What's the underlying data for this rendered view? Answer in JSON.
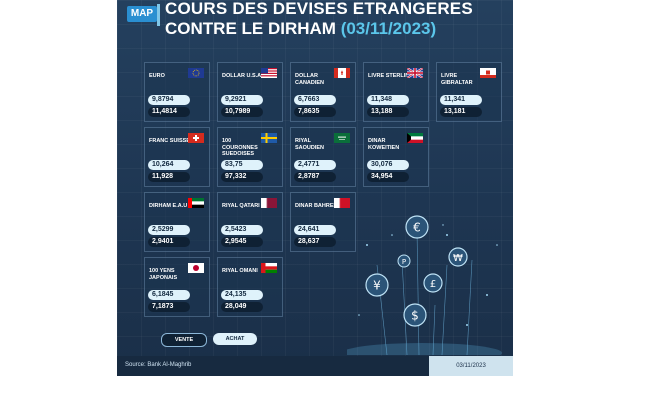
{
  "header": {
    "logo": "MAP",
    "title_line1": "COURS DES DEVISES ETRANGERES",
    "title_line2": "CONTRE LE DIRHAM",
    "title_date": "(03/11/2023)"
  },
  "currencies": [
    {
      "name": "EURO",
      "flag": "eu-flag",
      "vente": "9,8794",
      "achat": "11,4814"
    },
    {
      "name": "DOLLAR U.S.A",
      "flag": "us-flag",
      "vente": "9,2921",
      "achat": "10,7989"
    },
    {
      "name": "DOLLAR CANADIEN",
      "flag": "canada-flag",
      "vente": "6,7663",
      "achat": "7,8635"
    },
    {
      "name": "LIVRE STERLING",
      "flag": "uk-flag",
      "vente": "11,348",
      "achat": "13,188"
    },
    {
      "name": "LIVRE GIBRALTAR",
      "flag": "gibraltar-flag",
      "vente": "11,341",
      "achat": "13,181"
    },
    {
      "name": "FRANC SUISSE",
      "flag": "switzerland-flag",
      "vente": "10,264",
      "achat": "11,928"
    },
    {
      "name": "100 COURONNES SUEDOISES",
      "flag": "sweden-flag",
      "vente": "83,75",
      "achat": "97,332"
    },
    {
      "name": "RIYAL SAOUDIEN",
      "flag": "saudi-flag",
      "vente": "2,4771",
      "achat": "2,8787"
    },
    {
      "name": "DINAR KOWEITIEN",
      "flag": "kuwait-flag",
      "vente": "30,076",
      "achat": "34,954"
    },
    {
      "name": "DIRHAM E.A.U",
      "flag": "uae-flag",
      "vente": "2,5299",
      "achat": "2,9401"
    },
    {
      "name": "RIYAL QATARI",
      "flag": "qatar-flag",
      "vente": "2,5423",
      "achat": "2,9545"
    },
    {
      "name": "DINAR BAHREINI",
      "flag": "bahrain-flag",
      "vente": "24,641",
      "achat": "28,637"
    },
    {
      "name": "100 YENS JAPONAIS",
      "flag": "japan-flag",
      "vente": "6,1845",
      "achat": "7,1873"
    },
    {
      "name": "RIYAL OMANI",
      "flag": "oman-flag",
      "vente": "24,135",
      "achat": "28,049"
    }
  ],
  "legend": {
    "vente": "VENTE",
    "achat": "ACHAT"
  },
  "footer": {
    "source": "Source: Bank Al-Maghrib",
    "date": "03/11/2023"
  },
  "decoration": {
    "coin_symbols": [
      "€",
      "¥",
      "$",
      "£",
      "₩",
      "P"
    ]
  }
}
